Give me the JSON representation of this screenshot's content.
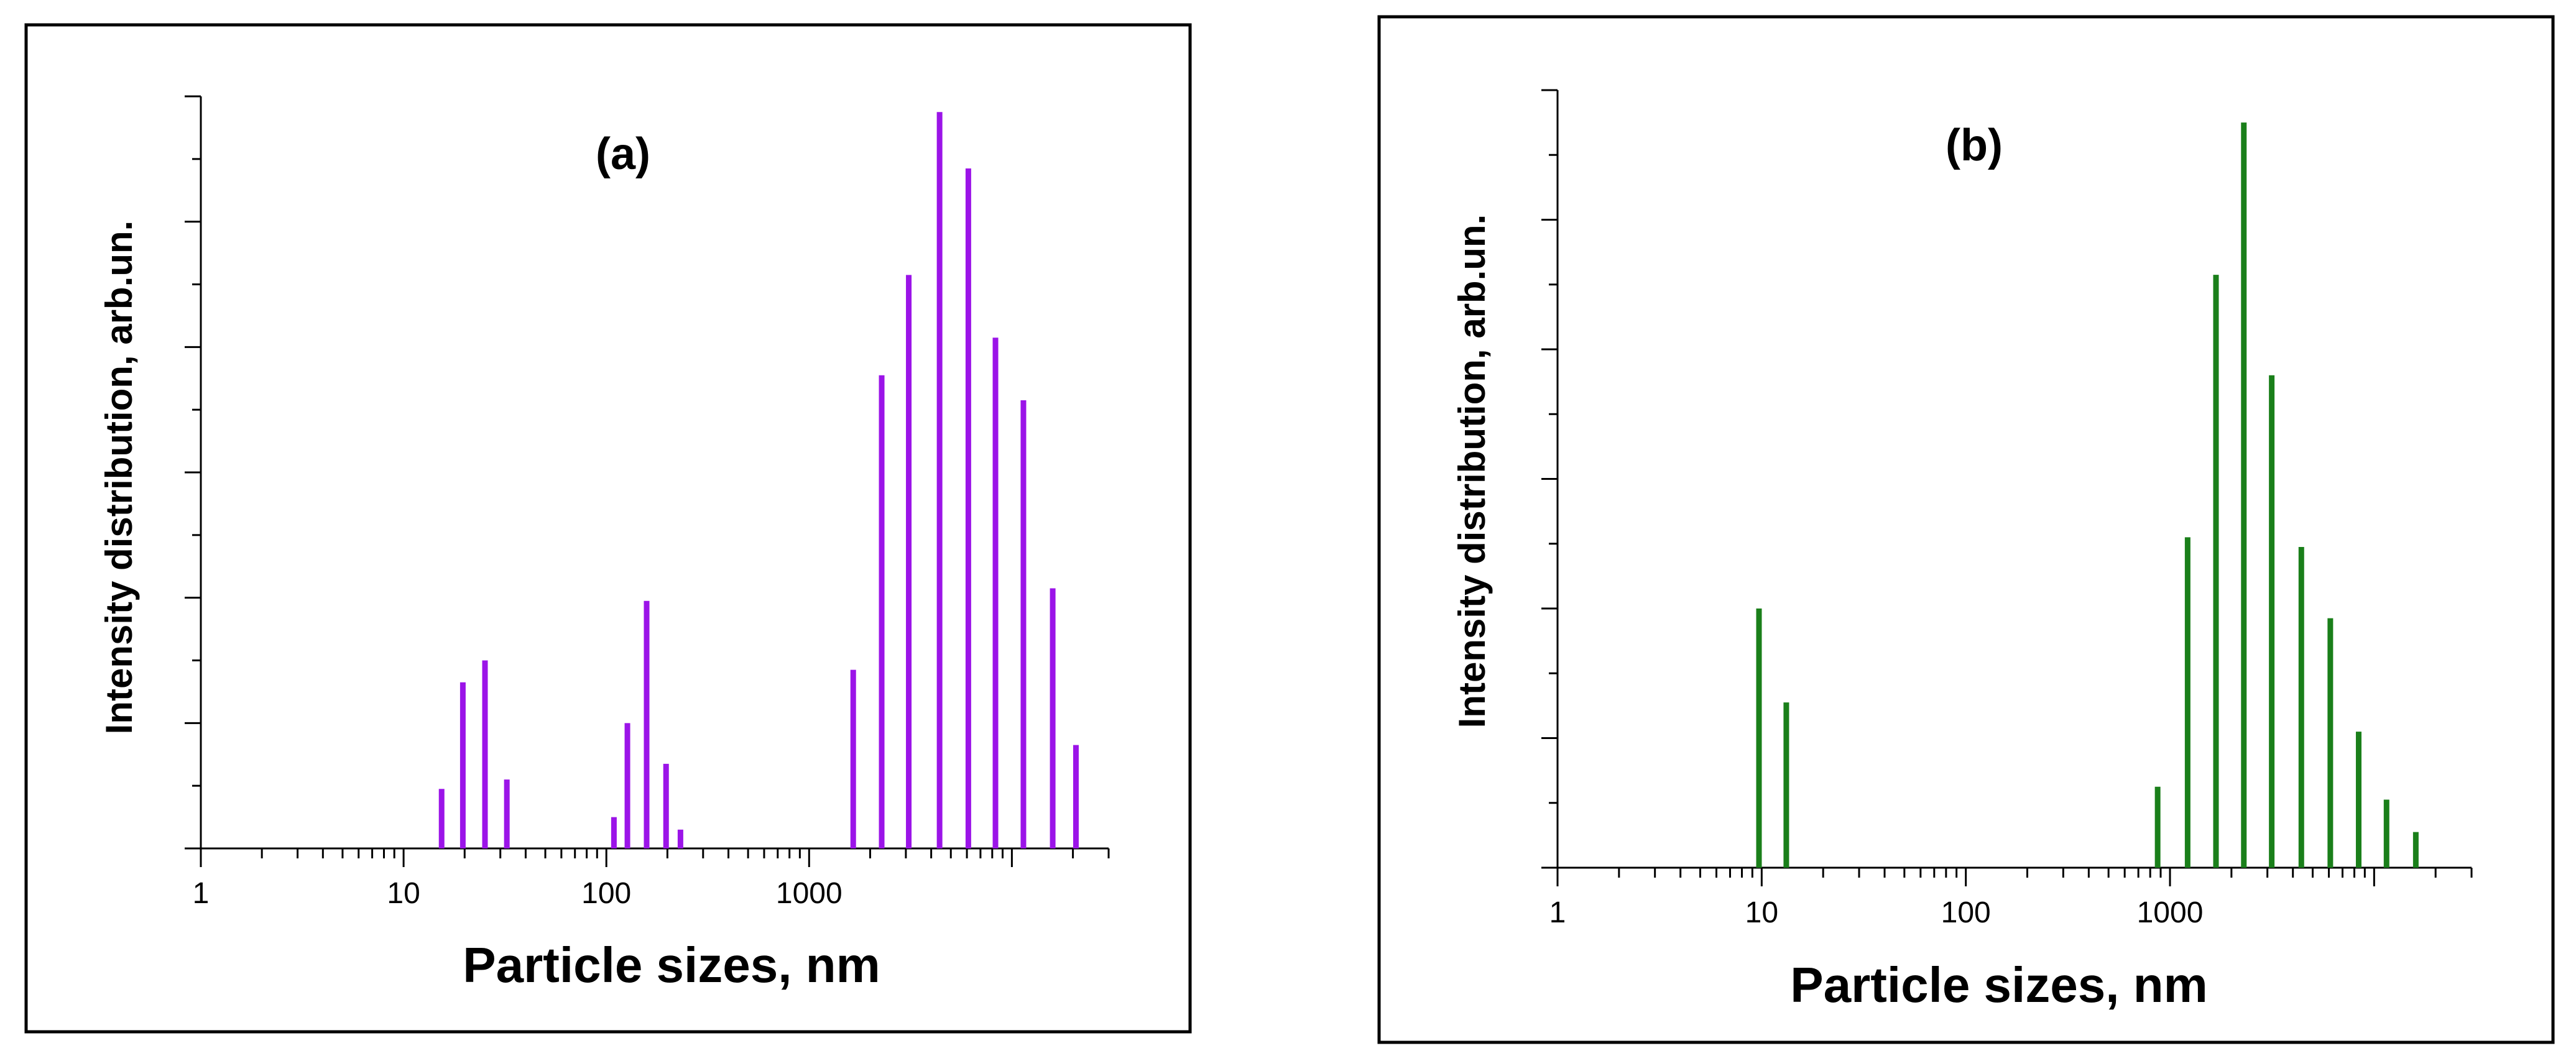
{
  "chart_data": [
    {
      "type": "bar",
      "title": "(a)",
      "xlabel": "Particle sizes, nm",
      "ylabel": "Intensity distribution, arb.un.",
      "xscale": "log",
      "xlim": [
        1,
        30000
      ],
      "ylim": [
        0,
        12
      ],
      "yticks_shown": false,
      "x_tick_labels": [
        "1",
        "10",
        "100",
        "1000"
      ],
      "x_tick_values": [
        1,
        10,
        100,
        1000
      ],
      "bar_color": "#9B14E8",
      "x": [
        15.4,
        19.6,
        25.2,
        32.3,
        109,
        127,
        158,
        197,
        232,
        1650,
        2280,
        3100,
        4400,
        6100,
        8300,
        11400,
        15900,
        20700
      ],
      "values": [
        0.95,
        2.65,
        3.0,
        1.1,
        0.5,
        2.0,
        3.95,
        1.35,
        0.3,
        2.85,
        7.55,
        9.15,
        11.75,
        10.85,
        8.15,
        7.15,
        4.15,
        1.65
      ]
    },
    {
      "type": "bar",
      "title": "(b)",
      "xlabel": "Particle sizes, nm",
      "ylabel": "Intensity distribution, arb.un.",
      "xscale": "log",
      "xlim": [
        1,
        30000
      ],
      "ylim": [
        0,
        12
      ],
      "yticks_shown": false,
      "x_tick_labels": [
        "1",
        "10",
        "100",
        "1000"
      ],
      "x_tick_values": [
        1,
        10,
        100,
        1000
      ],
      "bar_color": "#1A7F1A",
      "x": [
        9.7,
        13.2,
        870,
        1220,
        1680,
        2300,
        3150,
        4400,
        6100,
        8400,
        11500,
        16000
      ],
      "values": [
        4.0,
        2.55,
        1.25,
        5.1,
        9.15,
        11.5,
        7.6,
        4.95,
        3.85,
        2.1,
        1.05,
        0.55
      ]
    }
  ]
}
